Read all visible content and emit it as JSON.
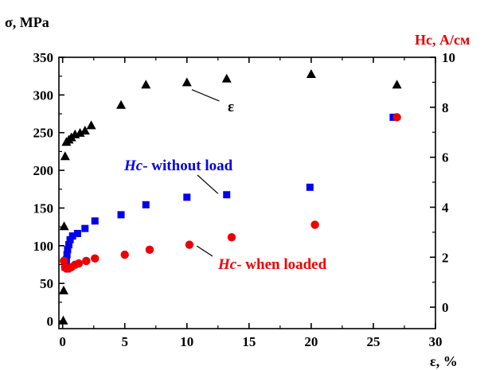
{
  "chart_data": {
    "type": "scatter",
    "left_axis": {
      "label": "σ, MPa",
      "range": [
        -10,
        350
      ],
      "ticks": [
        0,
        50,
        100,
        150,
        200,
        250,
        300,
        350
      ],
      "color": "#000000"
    },
    "right_axis": {
      "label": "Hc, А/см",
      "range": [
        -0.857,
        10
      ],
      "ticks": [
        0,
        2,
        4,
        6,
        8,
        10
      ],
      "color": "#e00000"
    },
    "x_axis": {
      "label": "ε, %",
      "range": [
        -0.3,
        30
      ],
      "ticks": [
        0,
        5,
        10,
        15,
        20,
        25,
        30
      ]
    },
    "grid": false,
    "series": [
      {
        "marker": "triangle",
        "color": "#000000",
        "axis": "left",
        "points": [
          [
            0.05,
            0
          ],
          [
            0.08,
            40
          ],
          [
            0.12,
            125
          ],
          [
            0.2,
            218
          ],
          [
            0.3,
            237
          ],
          [
            0.5,
            240
          ],
          [
            0.7,
            243
          ],
          [
            1.0,
            247
          ],
          [
            1.4,
            249
          ],
          [
            1.8,
            252
          ],
          [
            2.3,
            259
          ],
          [
            4.7,
            286
          ],
          [
            6.7,
            313
          ],
          [
            10.0,
            316
          ],
          [
            13.2,
            321
          ],
          [
            20.0,
            327
          ],
          [
            26.9,
            313
          ]
        ]
      },
      {
        "marker": "square",
        "color": "#0000ee",
        "axis": "right",
        "points": [
          [
            0.2,
            1.6
          ],
          [
            0.25,
            1.75
          ],
          [
            0.3,
            1.9
          ],
          [
            0.35,
            2.1
          ],
          [
            0.4,
            2.3
          ],
          [
            0.5,
            2.5
          ],
          [
            0.6,
            2.7
          ],
          [
            0.8,
            2.85
          ],
          [
            1.2,
            2.95
          ],
          [
            1.8,
            3.15
          ],
          [
            2.6,
            3.45
          ],
          [
            4.7,
            3.7
          ],
          [
            6.7,
            4.1
          ],
          [
            10.0,
            4.4
          ],
          [
            13.2,
            4.5
          ],
          [
            19.9,
            4.8
          ],
          [
            26.6,
            7.6
          ]
        ]
      },
      {
        "marker": "circle",
        "color": "#ee0000",
        "axis": "right",
        "points": [
          [
            0.1,
            1.85
          ],
          [
            0.2,
            1.6
          ],
          [
            0.3,
            1.55
          ],
          [
            0.4,
            1.55
          ],
          [
            0.5,
            1.55
          ],
          [
            0.7,
            1.6
          ],
          [
            1.0,
            1.7
          ],
          [
            1.3,
            1.75
          ],
          [
            1.9,
            1.85
          ],
          [
            2.6,
            1.95
          ],
          [
            5.0,
            2.1
          ],
          [
            7.0,
            2.3
          ],
          [
            10.2,
            2.5
          ],
          [
            13.6,
            2.8
          ],
          [
            20.3,
            3.3
          ],
          [
            26.9,
            7.6
          ]
        ]
      }
    ],
    "annotations": [
      {
        "text": "ε",
        "color": "#000000"
      },
      {
        "italic": "Hc",
        "text": "- without load",
        "color": "#0000ee"
      },
      {
        "italic": "Hc",
        "text": "- when loaded",
        "color": "#ee0000"
      }
    ]
  }
}
